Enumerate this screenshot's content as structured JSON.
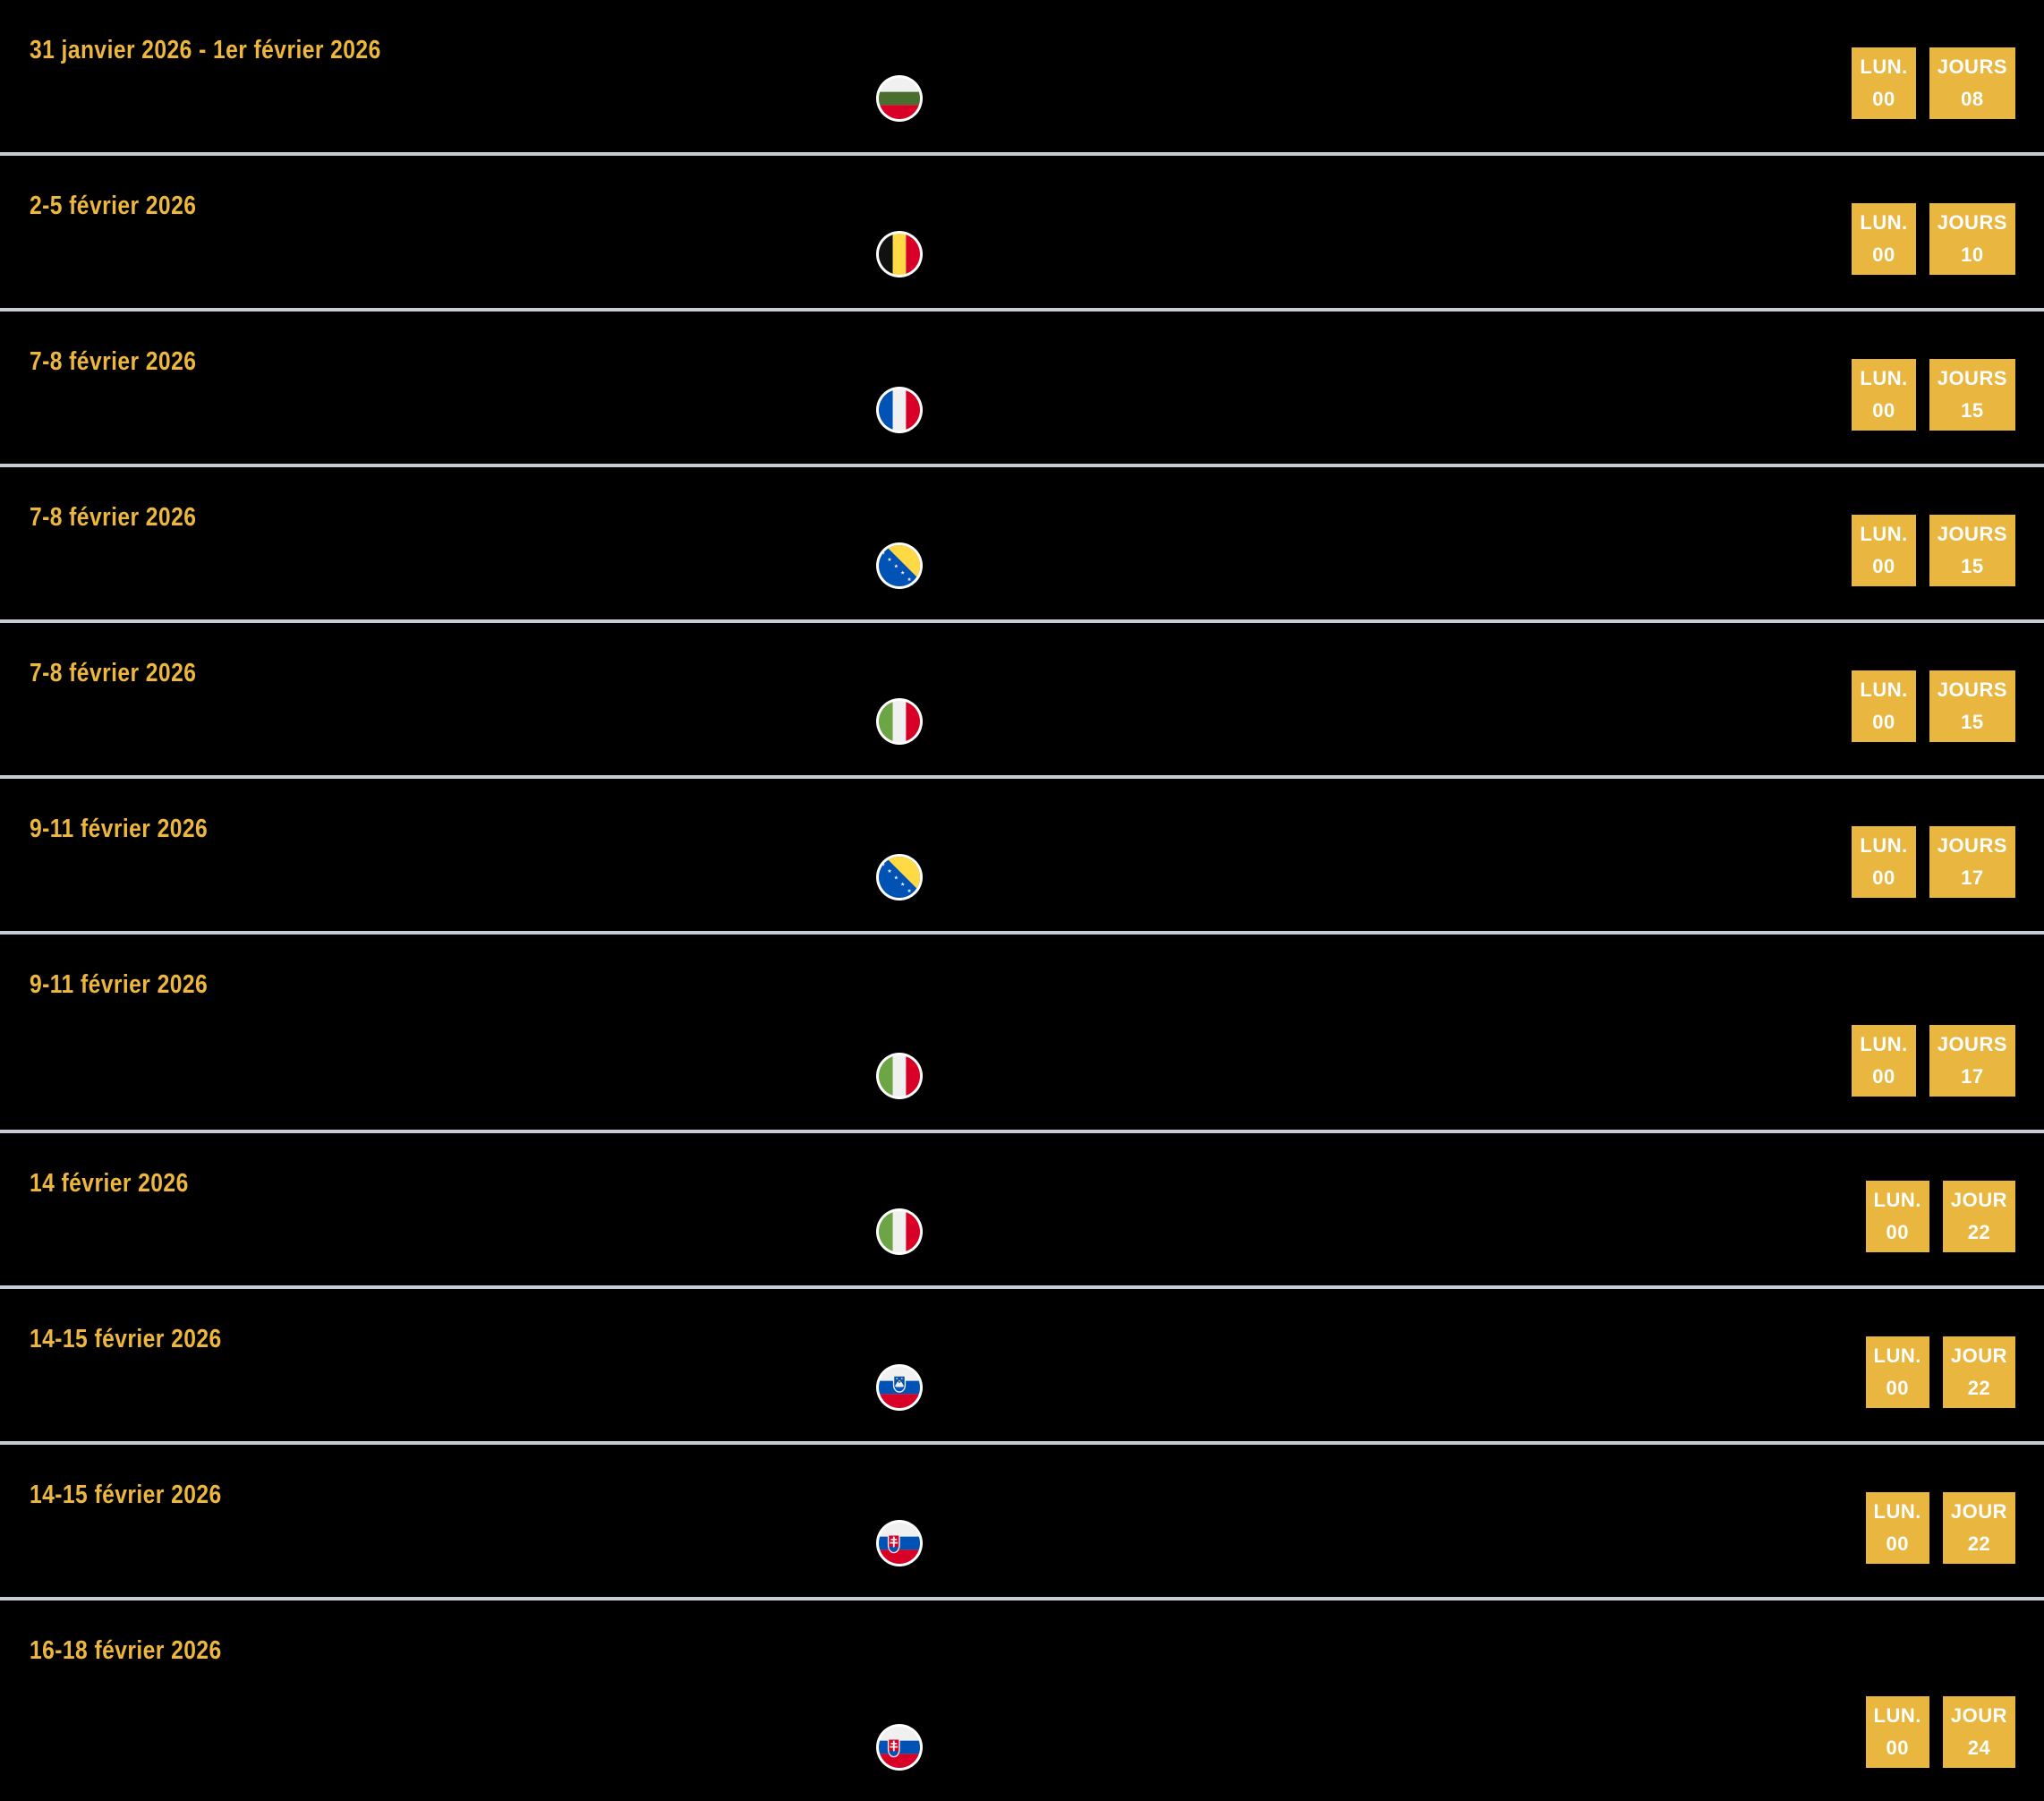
{
  "colors": {
    "background": "#000000",
    "accent_badge": "#E9B63F",
    "gold_text": "#EDB73E",
    "divider": "#C6CBD4",
    "badge_text": "#FFFFFF"
  },
  "countdown_list": {
    "rows": [
      {
        "date": "31 janvier 2026 - 1er février 2026",
        "flag_icon": "flag-bulgaria-icon",
        "badges": [
          {
            "label": "LUN.",
            "value": "00"
          },
          {
            "label": "JOURS",
            "value": "08"
          }
        ],
        "tall": false
      },
      {
        "date": "2-5 février 2026",
        "flag_icon": "flag-belgium-icon",
        "badges": [
          {
            "label": "LUN.",
            "value": "00"
          },
          {
            "label": "JOURS",
            "value": "10"
          }
        ],
        "tall": false
      },
      {
        "date": "7-8 février 2026",
        "flag_icon": "flag-france-icon",
        "badges": [
          {
            "label": "LUN.",
            "value": "00"
          },
          {
            "label": "JOURS",
            "value": "15"
          }
        ],
        "tall": false
      },
      {
        "date": "7-8 février 2026",
        "flag_icon": "flag-bosnia-herzegovina-icon",
        "badges": [
          {
            "label": "LUN.",
            "value": "00"
          },
          {
            "label": "JOURS",
            "value": "15"
          }
        ],
        "tall": false
      },
      {
        "date": "7-8 février 2026",
        "flag_icon": "flag-italy-icon",
        "badges": [
          {
            "label": "LUN.",
            "value": "00"
          },
          {
            "label": "JOURS",
            "value": "15"
          }
        ],
        "tall": false
      },
      {
        "date": "9-11 février 2026",
        "flag_icon": "flag-bosnia-herzegovina-icon",
        "badges": [
          {
            "label": "LUN.",
            "value": "00"
          },
          {
            "label": "JOURS",
            "value": "17"
          }
        ],
        "tall": false
      },
      {
        "date": "9-11 février 2026",
        "flag_icon": "flag-italy-icon",
        "badges": [
          {
            "label": "LUN.",
            "value": "00"
          },
          {
            "label": "JOURS",
            "value": "17"
          }
        ],
        "tall": true
      },
      {
        "date": "14 février 2026",
        "flag_icon": "flag-italy-icon",
        "badges": [
          {
            "label": "LUN.",
            "value": "00"
          },
          {
            "label": "JOUR",
            "value": "22"
          }
        ],
        "tall": false
      },
      {
        "date": "14-15 février 2026",
        "flag_icon": "flag-slovenia-icon",
        "badges": [
          {
            "label": "LUN.",
            "value": "00"
          },
          {
            "label": "JOUR",
            "value": "22"
          }
        ],
        "tall": false
      },
      {
        "date": "14-15 février 2026",
        "flag_icon": "flag-slovakia-icon",
        "badges": [
          {
            "label": "LUN.",
            "value": "00"
          },
          {
            "label": "JOUR",
            "value": "22"
          }
        ],
        "tall": false
      },
      {
        "date": "16-18 février 2026",
        "flag_icon": "flag-slovakia-icon",
        "badges": [
          {
            "label": "LUN.",
            "value": "00"
          },
          {
            "label": "JOUR",
            "value": "24"
          }
        ],
        "tall": true
      }
    ]
  }
}
